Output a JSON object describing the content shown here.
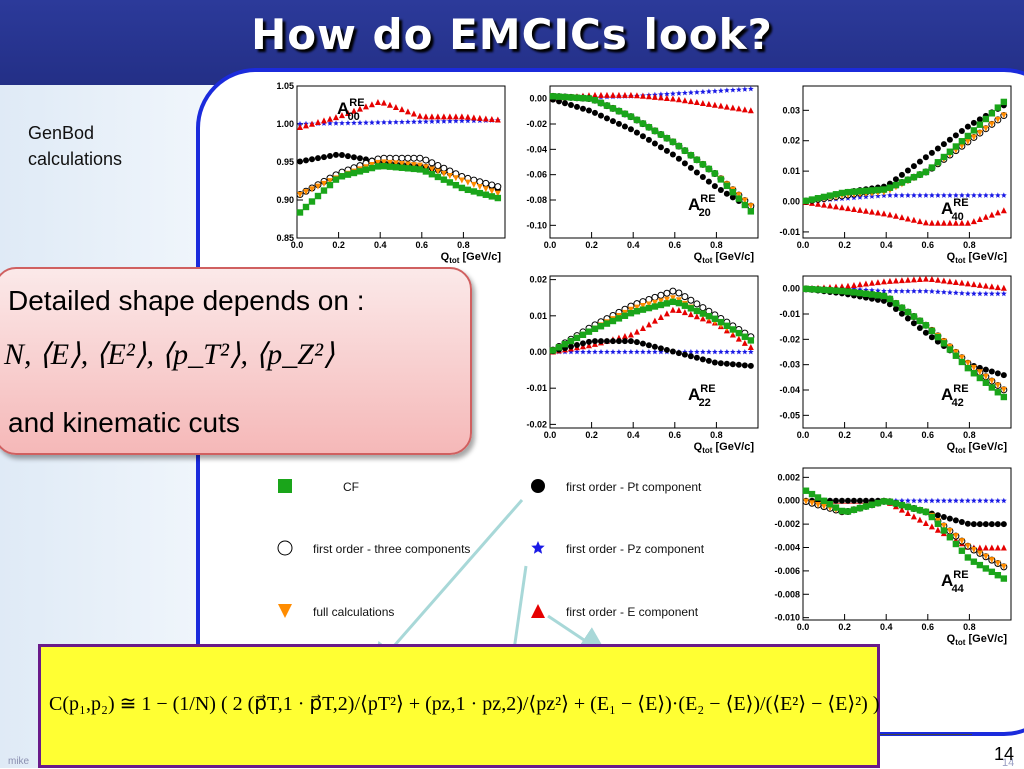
{
  "title": "How do EMCICs look?",
  "sidebar": {
    "line1": "GenBod",
    "line2": "calculations"
  },
  "callout": {
    "line1": "Detailed shape depends on  :",
    "line2": "N, ⟨E⟩, ⟨E²⟩, ⟨p_T²⟩, ⟨p_Z²⟩",
    "line3": "and kinematic cuts"
  },
  "formula": "C(p₁,p₂) ≅ 1 − (1/N) ( 2 (p⃗T,1 · p⃗T,2)/⟨pT²⟩ + (pz,1 · pz,2)/⟨pz²⟩ + (E₁ − ⟨E⟩)·(E₂ − ⟨E⟩)/(⟨E²⟩ − ⟨E⟩²) )",
  "footer": {
    "author": "mike",
    "page": "14",
    "page_faint": "14"
  },
  "colors": {
    "cf": "#1aa51a",
    "three": "#000000",
    "pt": "#000000",
    "pz": "#1a1ae6",
    "full": "#ff8c00",
    "e": "#e60000"
  },
  "legend": [
    {
      "key": "cf",
      "label": "CF",
      "marker": "square"
    },
    {
      "key": "three",
      "label": "first order - three components",
      "marker": "circle-open"
    },
    {
      "key": "full",
      "label": "full calculations",
      "marker": "triangle-down"
    },
    {
      "key": "pt",
      "label": "first order - Pt component",
      "marker": "circle"
    },
    {
      "key": "pz",
      "label": "first order - Pz component",
      "marker": "star"
    },
    {
      "key": "e",
      "label": "first order - E component",
      "marker": "triangle-up"
    }
  ],
  "chart_data": [
    {
      "id": "A00",
      "type": "scatter",
      "label": "A",
      "sup": "RE",
      "sub": "00",
      "xlim": [
        0,
        1
      ],
      "ylim": [
        0.85,
        1.05
      ],
      "xticks": [
        "0.0",
        "0.2",
        "0.4",
        "0.6",
        "0.8"
      ],
      "yticks": [
        "0.85",
        "0.90",
        "0.95",
        "1.00",
        "1.05"
      ],
      "xlabel": "Q",
      "xlabel_sub": "tot",
      "xlabel_unit": "[GeV/c]",
      "series": [
        {
          "key": "pz",
          "x": [
            0,
            0.2,
            0.4,
            0.6,
            0.8,
            1.0
          ],
          "y": [
            1.0,
            1.001,
            1.002,
            1.003,
            1.004,
            1.005
          ]
        },
        {
          "key": "e",
          "x": [
            0,
            0.2,
            0.4,
            0.6,
            0.8,
            1.0
          ],
          "y": [
            0.995,
            1.01,
            1.03,
            1.01,
            1.01,
            1.005
          ]
        },
        {
          "key": "pt",
          "x": [
            0,
            0.2,
            0.4,
            0.6,
            0.8,
            1.0
          ],
          "y": [
            0.95,
            0.96,
            0.95,
            0.945,
            0.93,
            0.91
          ]
        },
        {
          "key": "three",
          "x": [
            0,
            0.2,
            0.4,
            0.6,
            0.8,
            1.0
          ],
          "y": [
            0.905,
            0.935,
            0.955,
            0.955,
            0.93,
            0.915
          ]
        },
        {
          "key": "full",
          "x": [
            0,
            0.2,
            0.4,
            0.6,
            0.8,
            1.0
          ],
          "y": [
            0.905,
            0.93,
            0.95,
            0.945,
            0.925,
            0.905
          ]
        },
        {
          "key": "cf",
          "x": [
            0,
            0.2,
            0.4,
            0.6,
            0.8,
            1.0
          ],
          "y": [
            0.88,
            0.93,
            0.945,
            0.94,
            0.915,
            0.9
          ]
        }
      ]
    },
    {
      "id": "A20",
      "type": "scatter",
      "label": "A",
      "sup": "RE",
      "sub": "20",
      "xlim": [
        0,
        1
      ],
      "ylim": [
        -0.11,
        0.01
      ],
      "xticks": [
        "0.0",
        "0.2",
        "0.4",
        "0.6",
        "0.8"
      ],
      "yticks": [
        "0.00",
        "-0.02",
        "-0.04",
        "-0.06",
        "-0.08",
        "-0.10"
      ],
      "xlabel": "Q",
      "xlabel_sub": "tot",
      "xlabel_unit": "[GeV/c]",
      "series": [
        {
          "key": "pz",
          "x": [
            0,
            0.2,
            0.4,
            0.6,
            0.8,
            1.0
          ],
          "y": [
            0.0,
            0.001,
            0.002,
            0.004,
            0.006,
            0.008
          ]
        },
        {
          "key": "e",
          "x": [
            0,
            0.2,
            0.4,
            0.6,
            0.8,
            1.0
          ],
          "y": [
            0.0,
            0.003,
            0.003,
            0.0,
            -0.005,
            -0.01
          ]
        },
        {
          "key": "pt",
          "x": [
            0,
            0.2,
            0.4,
            0.6,
            0.8,
            1.0
          ],
          "y": [
            0.0,
            -0.01,
            -0.025,
            -0.045,
            -0.07,
            -0.09
          ]
        },
        {
          "key": "three",
          "x": [
            0,
            0.2,
            0.4,
            0.6,
            0.8,
            1.0
          ],
          "y": [
            0.002,
            0.0,
            -0.015,
            -0.035,
            -0.06,
            -0.09
          ]
        },
        {
          "key": "full",
          "x": [
            0,
            0.2,
            0.4,
            0.6,
            0.8,
            1.0
          ],
          "y": [
            0.002,
            0.0,
            -0.015,
            -0.035,
            -0.06,
            -0.09
          ]
        },
        {
          "key": "cf",
          "x": [
            0,
            0.2,
            0.4,
            0.6,
            0.8,
            1.0
          ],
          "y": [
            0.002,
            0.0,
            -0.015,
            -0.035,
            -0.06,
            -0.095
          ]
        }
      ]
    },
    {
      "id": "A40",
      "type": "scatter",
      "label": "A",
      "sup": "RE",
      "sub": "40",
      "xlim": [
        0,
        1
      ],
      "ylim": [
        -0.012,
        0.038
      ],
      "xticks": [
        "0.0",
        "0.2",
        "0.4",
        "0.6",
        "0.8"
      ],
      "yticks": [
        "0.03",
        "0.02",
        "0.01",
        "0.00",
        "-0.01"
      ],
      "xlabel": "Q",
      "xlabel_sub": "tot",
      "xlabel_unit": "[GeV/c]",
      "series": [
        {
          "key": "pz",
          "x": [
            0,
            0.2,
            0.4,
            0.6,
            0.8,
            1.0
          ],
          "y": [
            0.0,
            0.001,
            0.002,
            0.002,
            0.002,
            0.002
          ]
        },
        {
          "key": "e",
          "x": [
            0,
            0.2,
            0.4,
            0.6,
            0.8,
            1.0
          ],
          "y": [
            0.0,
            -0.002,
            -0.004,
            -0.007,
            -0.007,
            -0.002
          ]
        },
        {
          "key": "pt",
          "x": [
            0,
            0.2,
            0.4,
            0.6,
            0.8,
            1.0
          ],
          "y": [
            0.0,
            0.003,
            0.005,
            0.015,
            0.025,
            0.033
          ]
        },
        {
          "key": "three",
          "x": [
            0,
            0.2,
            0.4,
            0.6,
            0.8,
            1.0
          ],
          "y": [
            0.0,
            0.002,
            0.004,
            0.01,
            0.02,
            0.03
          ]
        },
        {
          "key": "full",
          "x": [
            0,
            0.2,
            0.4,
            0.6,
            0.8,
            1.0
          ],
          "y": [
            0.0,
            0.002,
            0.003,
            0.01,
            0.02,
            0.03
          ]
        },
        {
          "key": "cf",
          "x": [
            0,
            0.2,
            0.4,
            0.6,
            0.8,
            1.0
          ],
          "y": [
            0.0,
            0.003,
            0.004,
            0.01,
            0.022,
            0.035
          ]
        }
      ]
    },
    {
      "id": "A22",
      "type": "scatter",
      "label": "A",
      "sup": "RE",
      "sub": "22",
      "xlim": [
        0,
        1
      ],
      "ylim": [
        -0.021,
        0.021
      ],
      "xticks": [
        "0.0",
        "0.2",
        "0.4",
        "0.6",
        "0.8"
      ],
      "yticks": [
        "0.02",
        "0.01",
        "0.00",
        "-0.01",
        "-0.02"
      ],
      "xlabel": "Q",
      "xlabel_sub": "tot",
      "xlabel_unit": "[GeV/c]",
      "series": [
        {
          "key": "pz",
          "x": [
            0,
            0.2,
            0.4,
            0.6,
            0.8,
            1.0
          ],
          "y": [
            0.0,
            0.0,
            0.0,
            0.0,
            0.0,
            0.0
          ]
        },
        {
          "key": "e",
          "x": [
            0,
            0.2,
            0.4,
            0.6,
            0.8,
            1.0
          ],
          "y": [
            0.0,
            0.002,
            0.005,
            0.012,
            0.008,
            0.0
          ]
        },
        {
          "key": "pt",
          "x": [
            0,
            0.2,
            0.4,
            0.6,
            0.8,
            1.0
          ],
          "y": [
            0.0,
            0.003,
            0.003,
            0.0,
            -0.003,
            -0.004
          ]
        },
        {
          "key": "three",
          "x": [
            0,
            0.2,
            0.4,
            0.6,
            0.8,
            1.0
          ],
          "y": [
            0.0,
            0.007,
            0.013,
            0.017,
            0.01,
            0.003
          ]
        },
        {
          "key": "full",
          "x": [
            0,
            0.2,
            0.4,
            0.6,
            0.8,
            1.0
          ],
          "y": [
            0.0,
            0.006,
            0.012,
            0.015,
            0.008,
            0.002
          ]
        },
        {
          "key": "cf",
          "x": [
            0,
            0.2,
            0.4,
            0.6,
            0.8,
            1.0
          ],
          "y": [
            0.0,
            0.006,
            0.011,
            0.014,
            0.009,
            0.002
          ]
        }
      ]
    },
    {
      "id": "A42",
      "type": "scatter",
      "label": "A",
      "sup": "RE",
      "sub": "42",
      "xlim": [
        0,
        1
      ],
      "ylim": [
        -0.055,
        0.005
      ],
      "xticks": [
        "0.0",
        "0.2",
        "0.4",
        "0.6",
        "0.8"
      ],
      "yticks": [
        "0.00",
        "-0.01",
        "-0.02",
        "-0.03",
        "-0.04",
        "-0.05"
      ],
      "xlabel": "Q",
      "xlabel_sub": "tot",
      "xlabel_unit": "[GeV/c]",
      "series": [
        {
          "key": "pz",
          "x": [
            0,
            0.2,
            0.4,
            0.6,
            0.8,
            1.0
          ],
          "y": [
            0.0,
            0.0,
            -0.001,
            -0.001,
            -0.002,
            -0.002
          ]
        },
        {
          "key": "e",
          "x": [
            0,
            0.2,
            0.4,
            0.6,
            0.8,
            1.0
          ],
          "y": [
            0.0,
            0.001,
            0.003,
            0.004,
            0.002,
            0.0
          ]
        },
        {
          "key": "pt",
          "x": [
            0,
            0.2,
            0.4,
            0.6,
            0.8,
            1.0
          ],
          "y": [
            0.0,
            -0.002,
            -0.005,
            -0.018,
            -0.03,
            -0.035
          ]
        },
        {
          "key": "three",
          "x": [
            0,
            0.2,
            0.4,
            0.6,
            0.8,
            1.0
          ],
          "y": [
            0.0,
            -0.001,
            -0.003,
            -0.015,
            -0.03,
            -0.042
          ]
        },
        {
          "key": "full",
          "x": [
            0,
            0.2,
            0.4,
            0.6,
            0.8,
            1.0
          ],
          "y": [
            0.0,
            -0.001,
            -0.003,
            -0.015,
            -0.03,
            -0.042
          ]
        },
        {
          "key": "cf",
          "x": [
            0,
            0.2,
            0.4,
            0.6,
            0.8,
            1.0
          ],
          "y": [
            0.0,
            -0.001,
            -0.003,
            -0.015,
            -0.032,
            -0.045
          ]
        }
      ]
    },
    {
      "id": "A44",
      "type": "scatter",
      "label": "A",
      "sup": "RE",
      "sub": "44",
      "xlim": [
        0,
        1
      ],
      "ylim": [
        -0.0102,
        0.0028
      ],
      "xticks": [
        "0.0",
        "0.2",
        "0.4",
        "0.6",
        "0.8"
      ],
      "yticks": [
        "0.002",
        "0.000",
        "-0.002",
        "-0.004",
        "-0.006",
        "-0.008",
        "-0.010"
      ],
      "xlabel": "Q",
      "xlabel_sub": "tot",
      "xlabel_unit": "[GeV/c]",
      "series": [
        {
          "key": "pz",
          "x": [
            0,
            0.2,
            0.4,
            0.6,
            0.8,
            1.0
          ],
          "y": [
            0.0,
            0.0,
            0.0,
            0.0,
            0.0,
            0.0
          ]
        },
        {
          "key": "e",
          "x": [
            0,
            0.2,
            0.4,
            0.6,
            0.8,
            1.0
          ],
          "y": [
            0.0,
            0.0,
            0.0,
            -0.002,
            -0.004,
            -0.004
          ]
        },
        {
          "key": "pt",
          "x": [
            0,
            0.2,
            0.4,
            0.6,
            0.8,
            1.0
          ],
          "y": [
            0.0,
            0.0,
            0.0,
            -0.001,
            -0.002,
            -0.002
          ]
        },
        {
          "key": "three",
          "x": [
            0,
            0.2,
            0.4,
            0.6,
            0.8,
            1.0
          ],
          "y": [
            0.0,
            -0.001,
            0.0,
            -0.001,
            -0.004,
            -0.006
          ]
        },
        {
          "key": "full",
          "x": [
            0,
            0.2,
            0.4,
            0.6,
            0.8,
            1.0
          ],
          "y": [
            0.0,
            -0.001,
            0.0,
            -0.001,
            -0.004,
            -0.006
          ]
        },
        {
          "key": "cf",
          "x": [
            0,
            0.2,
            0.4,
            0.6,
            0.8,
            1.0
          ],
          "y": [
            0.001,
            -0.001,
            0.0,
            -0.001,
            -0.005,
            -0.007
          ]
        }
      ]
    }
  ]
}
